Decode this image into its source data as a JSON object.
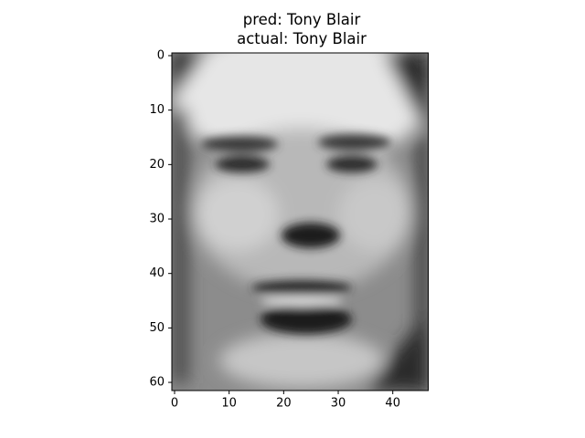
{
  "chart_data": {
    "type": "image",
    "title": [
      "pred: Tony Blair",
      "actual: Tony Blair"
    ],
    "cmap": "gray",
    "xlim": [
      -0.5,
      46.5
    ],
    "ylim": [
      61.5,
      -0.5
    ],
    "xticks": [
      0,
      10,
      20,
      30,
      40
    ],
    "yticks": [
      0,
      10,
      20,
      30,
      40,
      50,
      60
    ]
  }
}
